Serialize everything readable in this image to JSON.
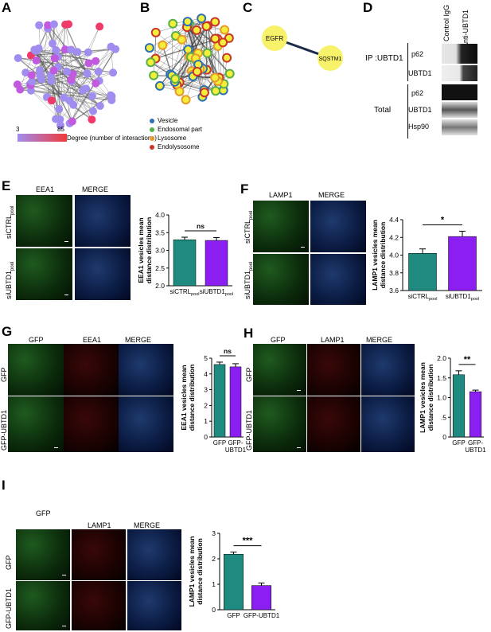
{
  "panels": {
    "A": {
      "label": "A",
      "legend_min": "3",
      "legend_max": "85",
      "legend_caption": "Degree (number of interactions)",
      "colors": {
        "low": "#a18cf0",
        "high": "#f03a3a"
      }
    },
    "B": {
      "label": "B",
      "legend": [
        {
          "name": "Vesicle",
          "color": "#2b6fb5"
        },
        {
          "name": "Endosomal part",
          "color": "#56b04a"
        },
        {
          "name": "Lysosome",
          "color": "#e89a2a"
        },
        {
          "name": "Endolysosome",
          "color": "#c9342b"
        }
      ]
    },
    "C": {
      "label": "C",
      "node1": "EGFR",
      "node2": "SQSTM1"
    },
    "D": {
      "label": "D",
      "columns": [
        "Control IgG",
        "Anti-UBTD1"
      ],
      "ip_label": "IP :UBTD1",
      "total_label": "Total",
      "bands_ip": [
        "p62",
        "UBTD1"
      ],
      "bands_total": [
        "p62",
        "UBTD1",
        "Hsp90"
      ]
    },
    "E": {
      "label": "E",
      "col_titles": [
        "EEA1",
        "MERGE"
      ],
      "row_labels": [
        "siCTRL",
        "siUBTD1"
      ],
      "row_subscript": "pool",
      "ylabel": "EEA1 vesicles mean distance distribution"
    },
    "F": {
      "label": "F",
      "col_titles": [
        "LAMP1",
        "MERGE"
      ],
      "row_labels": [
        "siCTRL",
        "siUBTD1"
      ],
      "row_subscript": "pool",
      "ylabel": "LAMP1 vesicles mean distance distribution"
    },
    "G": {
      "label": "G",
      "col_titles": [
        "GFP",
        "EEA1",
        "MERGE"
      ],
      "row_labels": [
        "GFP",
        "GFP-UBTD1"
      ],
      "ylabel": "EEA1 vesicles mean distance distribution"
    },
    "H": {
      "label": "H",
      "col_titles": [
        "GFP",
        "LAMP1",
        "MERGE"
      ],
      "row_labels": [
        "GFP",
        "GFP-UBTD1"
      ],
      "ylabel": "LAMP1 vesicles mean distance distribution"
    },
    "I": {
      "label": "I",
      "col_titles": [
        "GFP",
        "LAMP1",
        "MERGE"
      ],
      "row_labels": [
        "GFP",
        "GFP-UBTD1"
      ],
      "ylabel": "LAMP1 vesicles mean distance distribution"
    }
  },
  "chart_data": [
    {
      "id": "E",
      "type": "bar",
      "categories": [
        "siCTRLpool",
        "siUBTD1pool"
      ],
      "values": [
        3.3,
        3.28
      ],
      "errors": [
        0.07,
        0.08
      ],
      "colors": [
        "#1f8a80",
        "#8b1ef0"
      ],
      "ylim": [
        2.0,
        4.0
      ],
      "yticks": [
        "2.0",
        "2.5",
        "3.0",
        "3.5",
        "4.0"
      ],
      "significance": "ns"
    },
    {
      "id": "F",
      "type": "bar",
      "categories": [
        "siCTRLpool",
        "siUBTD1pool"
      ],
      "values": [
        4.02,
        4.21
      ],
      "errors": [
        0.05,
        0.06
      ],
      "colors": [
        "#1f8a80",
        "#8b1ef0"
      ],
      "ylim": [
        3.6,
        4.4
      ],
      "yticks": [
        "3.6",
        "3.8",
        "4.0",
        "4.2",
        "4.4"
      ],
      "significance": "*"
    },
    {
      "id": "G",
      "type": "bar",
      "categories": [
        "GFP",
        "GFP-UBTD1"
      ],
      "values": [
        4.6,
        4.45
      ],
      "errors": [
        0.15,
        0.2
      ],
      "colors": [
        "#1f8a80",
        "#8b1ef0"
      ],
      "ylim": [
        0,
        5
      ],
      "yticks": [
        "0",
        "1",
        "2",
        "3",
        "4",
        "5"
      ],
      "significance": "ns"
    },
    {
      "id": "H",
      "type": "bar",
      "categories": [
        "GFP",
        "GFP-UBTD1"
      ],
      "values": [
        1.58,
        1.15
      ],
      "errors": [
        0.1,
        0.04
      ],
      "colors": [
        "#1f8a80",
        "#8b1ef0"
      ],
      "ylim": [
        0,
        2.0
      ],
      "yticks": [
        "0",
        ".5",
        "1.0",
        "1.5",
        "2.0"
      ],
      "significance": "**"
    },
    {
      "id": "I",
      "type": "bar",
      "categories": [
        "GFP",
        "GFP-UBTD1"
      ],
      "values": [
        2.18,
        0.95
      ],
      "errors": [
        0.08,
        0.1
      ],
      "colors": [
        "#1f8a80",
        "#8b1ef0"
      ],
      "ylim": [
        0,
        3
      ],
      "yticks": [
        "0",
        "1",
        "2",
        "3"
      ],
      "significance": "***"
    }
  ]
}
